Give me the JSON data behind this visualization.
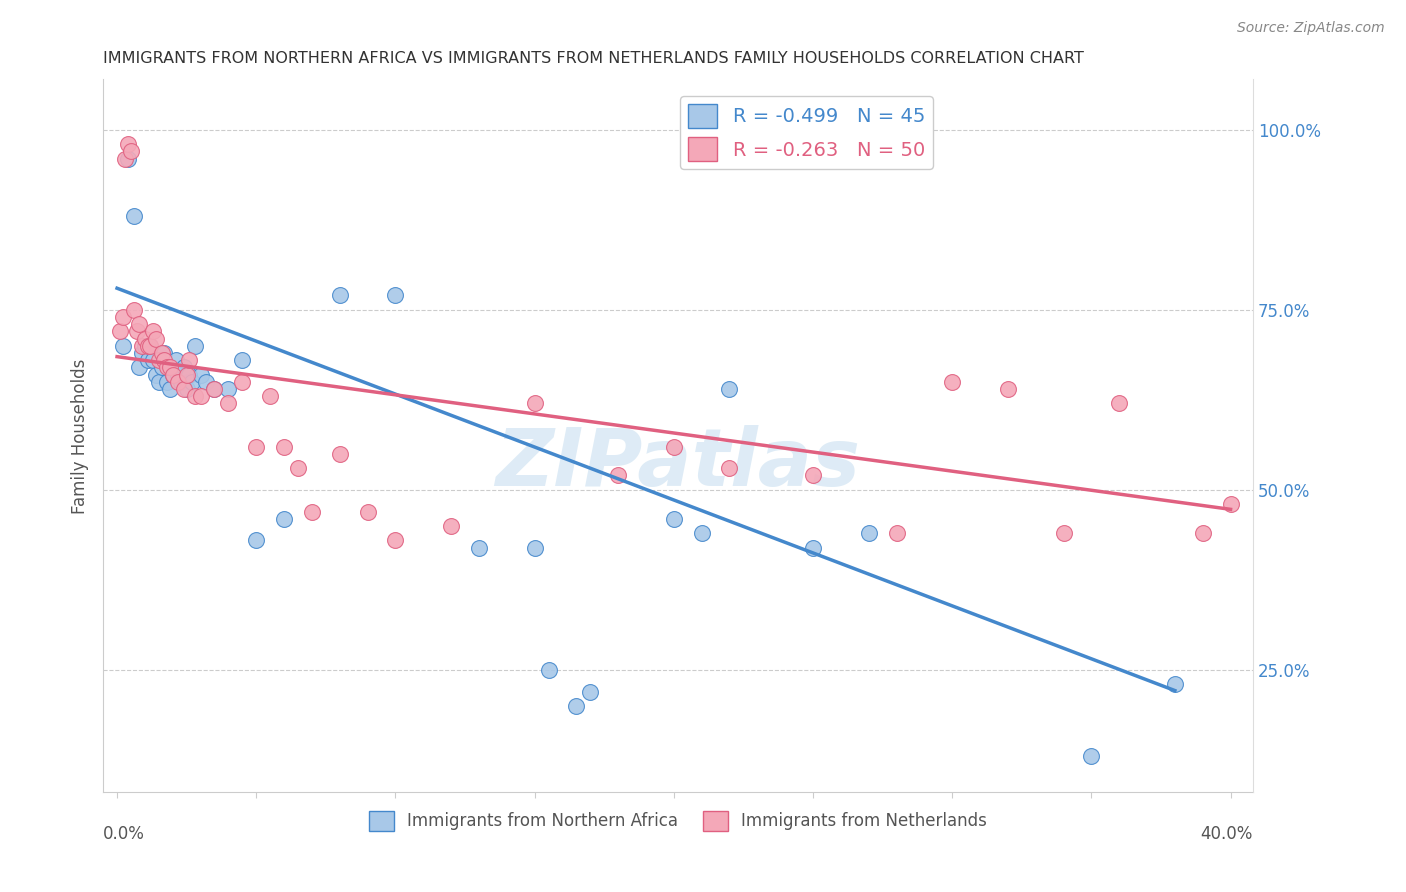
{
  "title": "IMMIGRANTS FROM NORTHERN AFRICA VS IMMIGRANTS FROM NETHERLANDS FAMILY HOUSEHOLDS CORRELATION CHART",
  "source": "Source: ZipAtlas.com",
  "ylabel": "Family Households",
  "legend_r1": "-0.499",
  "legend_n1": "45",
  "legend_r2": "-0.263",
  "legend_n2": "50",
  "color_blue": "#a8c8e8",
  "color_pink": "#f4a8b8",
  "line_color_blue": "#4488cc",
  "line_color_pink": "#e06080",
  "watermark": "ZIPatlas",
  "blue_slope": -1.47,
  "blue_intercept": 0.78,
  "pink_slope": -0.53,
  "pink_intercept": 0.685,
  "blue_scatter_x": [
    0.002,
    0.004,
    0.006,
    0.008,
    0.009,
    0.01,
    0.011,
    0.012,
    0.013,
    0.014,
    0.015,
    0.016,
    0.017,
    0.018,
    0.019,
    0.02,
    0.021,
    0.022,
    0.023,
    0.024,
    0.025,
    0.026,
    0.027,
    0.028,
    0.03,
    0.032,
    0.035,
    0.04,
    0.045,
    0.05,
    0.06,
    0.08,
    0.1,
    0.13,
    0.15,
    0.17,
    0.2,
    0.22,
    0.25,
    0.27,
    0.35,
    0.38,
    0.155,
    0.165,
    0.21
  ],
  "blue_scatter_y": [
    0.7,
    0.96,
    0.88,
    0.67,
    0.69,
    0.7,
    0.68,
    0.7,
    0.68,
    0.66,
    0.65,
    0.67,
    0.69,
    0.65,
    0.64,
    0.66,
    0.68,
    0.66,
    0.65,
    0.67,
    0.64,
    0.66,
    0.65,
    0.7,
    0.66,
    0.65,
    0.64,
    0.64,
    0.68,
    0.43,
    0.46,
    0.77,
    0.77,
    0.42,
    0.42,
    0.22,
    0.46,
    0.64,
    0.42,
    0.44,
    0.13,
    0.23,
    0.25,
    0.2,
    0.44
  ],
  "pink_scatter_x": [
    0.001,
    0.002,
    0.003,
    0.004,
    0.005,
    0.006,
    0.007,
    0.008,
    0.009,
    0.01,
    0.011,
    0.012,
    0.013,
    0.014,
    0.015,
    0.016,
    0.017,
    0.018,
    0.019,
    0.02,
    0.022,
    0.024,
    0.025,
    0.026,
    0.028,
    0.03,
    0.035,
    0.04,
    0.045,
    0.05,
    0.055,
    0.06,
    0.065,
    0.07,
    0.08,
    0.09,
    0.1,
    0.12,
    0.15,
    0.18,
    0.2,
    0.22,
    0.25,
    0.28,
    0.3,
    0.32,
    0.34,
    0.36,
    0.39,
    0.4
  ],
  "pink_scatter_y": [
    0.72,
    0.74,
    0.96,
    0.98,
    0.97,
    0.75,
    0.72,
    0.73,
    0.7,
    0.71,
    0.7,
    0.7,
    0.72,
    0.71,
    0.68,
    0.69,
    0.68,
    0.67,
    0.67,
    0.66,
    0.65,
    0.64,
    0.66,
    0.68,
    0.63,
    0.63,
    0.64,
    0.62,
    0.65,
    0.56,
    0.63,
    0.56,
    0.53,
    0.47,
    0.55,
    0.47,
    0.43,
    0.45,
    0.62,
    0.52,
    0.56,
    0.53,
    0.52,
    0.44,
    0.65,
    0.64,
    0.44,
    0.62,
    0.44,
    0.48
  ]
}
